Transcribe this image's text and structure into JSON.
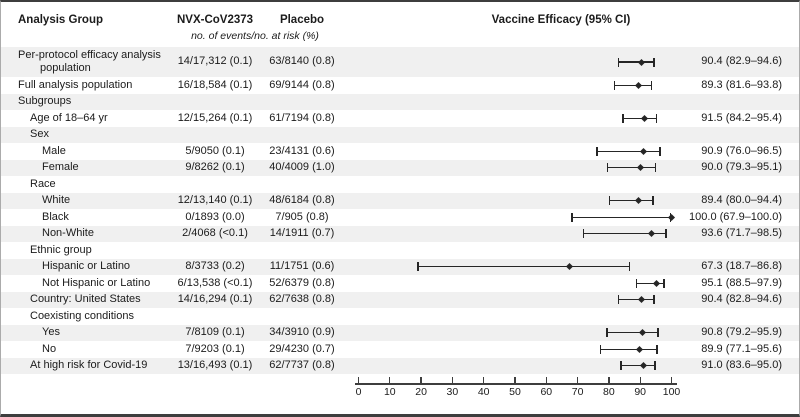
{
  "header": {
    "analysis_group": "Analysis Group",
    "nvx": "NVX-CoV2373",
    "placebo": "Placebo",
    "events_subtitle": "no. of events/no. at risk (%)",
    "vaccine_efficacy": "Vaccine Efficacy (95% CI)"
  },
  "colors": {
    "row_shade": "#f0f0f0",
    "marker": "#262626",
    "border_dark": "#3e3e3e",
    "border_light": "#ababab",
    "text": "#1b1b1b"
  },
  "rows": [
    {
      "label": "Per-protocol efficacy analysis population",
      "indent": 0,
      "nvx": "14/17,312 (0.1)",
      "placebo": "63/8140 (0.8)",
      "ve": "90.4 (82.9–94.6)",
      "est": 90.4,
      "lo": 82.9,
      "hi": 94.6
    },
    {
      "label": "Full analysis population",
      "indent": 0,
      "nvx": "16/18,584 (0.1)",
      "placebo": "69/9144 (0.8)",
      "ve": "89.3 (81.6–93.8)",
      "est": 89.3,
      "lo": 81.6,
      "hi": 93.8
    },
    {
      "label": "Subgroups",
      "indent": 0
    },
    {
      "label": "Age of 18–64 yr",
      "indent": 1,
      "nvx": "12/15,264 (0.1)",
      "placebo": "61/7194 (0.8)",
      "ve": "91.5 (84.2–95.4)",
      "est": 91.5,
      "lo": 84.2,
      "hi": 95.4
    },
    {
      "label": "Sex",
      "indent": 1
    },
    {
      "label": "Male",
      "indent": 2,
      "nvx": "5/9050 (0.1)",
      "placebo": "23/4131 (0.6)",
      "ve": "90.9 (76.0–96.5)",
      "est": 90.9,
      "lo": 76.0,
      "hi": 96.5
    },
    {
      "label": "Female",
      "indent": 2,
      "nvx": "9/8262 (0.1)",
      "placebo": "40/4009 (1.0)",
      "ve": "90.0 (79.3–95.1)",
      "est": 90.0,
      "lo": 79.3,
      "hi": 95.1
    },
    {
      "label": "Race",
      "indent": 1
    },
    {
      "label": "White",
      "indent": 2,
      "nvx": "12/13,140 (0.1)",
      "placebo": "48/6184 (0.8)",
      "ve": "89.4 (80.0–94.4)",
      "est": 89.4,
      "lo": 80.0,
      "hi": 94.4
    },
    {
      "label": "Black",
      "indent": 2,
      "nvx": "0/1893 (0.0)",
      "placebo": "7/905 (0.8)",
      "ve": "100.0 (67.9–100.0)",
      "est": 100.0,
      "lo": 67.9,
      "hi": 100.0
    },
    {
      "label": "Non-White",
      "indent": 2,
      "nvx": "2/4068 (<0.1)",
      "placebo": "14/1911 (0.7)",
      "ve": "93.6 (71.7–98.5)",
      "est": 93.6,
      "lo": 71.7,
      "hi": 98.5
    },
    {
      "label": "Ethnic group",
      "indent": 1
    },
    {
      "label": "Hispanic or Latino",
      "indent": 2,
      "nvx": "8/3733 (0.2)",
      "placebo": "11/1751 (0.6)",
      "ve": "67.3 (18.7–86.8)",
      "est": 67.3,
      "lo": 18.7,
      "hi": 86.8
    },
    {
      "label": "Not Hispanic or Latino",
      "indent": 2,
      "nvx": "6/13,538 (<0.1)",
      "placebo": "52/6379 (0.8)",
      "ve": "95.1 (88.5–97.9)",
      "est": 95.1,
      "lo": 88.5,
      "hi": 97.9
    },
    {
      "label": "Country: United States",
      "indent": 1,
      "nvx": "14/16,294 (0.1)",
      "placebo": "62/7638 (0.8)",
      "ve": "90.4 (82.8–94.6)",
      "est": 90.4,
      "lo": 82.8,
      "hi": 94.6
    },
    {
      "label": "Coexisting conditions",
      "indent": 1
    },
    {
      "label": "Yes",
      "indent": 2,
      "nvx": "7/8109 (0.1)",
      "placebo": "34/3910 (0.9)",
      "ve": "90.8 (79.2–95.9)",
      "est": 90.8,
      "lo": 79.2,
      "hi": 95.9
    },
    {
      "label": "No",
      "indent": 2,
      "nvx": "7/9203 (0.1)",
      "placebo": "29/4230 (0.7)",
      "ve": "89.9 (77.1–95.6)",
      "est": 89.9,
      "lo": 77.1,
      "hi": 95.6
    },
    {
      "label": "At high risk for Covid-19",
      "indent": 1,
      "nvx": "13/16,493 (0.1)",
      "placebo": "62/7737 (0.8)",
      "ve": "91.0 (83.6–95.0)",
      "est": 91.0,
      "lo": 83.6,
      "hi": 95.0
    }
  ],
  "chart_data": {
    "type": "scatter",
    "title": "Vaccine Efficacy (95% CI)",
    "xlabel": "",
    "xlim": [
      0,
      100
    ],
    "xticks": [
      0,
      10,
      20,
      30,
      40,
      50,
      60,
      70,
      80,
      90,
      100
    ],
    "grid": false,
    "legend": "none",
    "points": [
      {
        "label": "Per-protocol efficacy analysis population",
        "estimate": 90.4,
        "ci_low": 82.9,
        "ci_high": 94.6
      },
      {
        "label": "Full analysis population",
        "estimate": 89.3,
        "ci_low": 81.6,
        "ci_high": 93.8
      },
      {
        "label": "Age of 18–64 yr",
        "estimate": 91.5,
        "ci_low": 84.2,
        "ci_high": 95.4
      },
      {
        "label": "Male",
        "estimate": 90.9,
        "ci_low": 76.0,
        "ci_high": 96.5
      },
      {
        "label": "Female",
        "estimate": 90.0,
        "ci_low": 79.3,
        "ci_high": 95.1
      },
      {
        "label": "White",
        "estimate": 89.4,
        "ci_low": 80.0,
        "ci_high": 94.4
      },
      {
        "label": "Black",
        "estimate": 100.0,
        "ci_low": 67.9,
        "ci_high": 100.0
      },
      {
        "label": "Non-White",
        "estimate": 93.6,
        "ci_low": 71.7,
        "ci_high": 98.5
      },
      {
        "label": "Hispanic or Latino",
        "estimate": 67.3,
        "ci_low": 18.7,
        "ci_high": 86.8
      },
      {
        "label": "Not Hispanic or Latino",
        "estimate": 95.1,
        "ci_low": 88.5,
        "ci_high": 97.9
      },
      {
        "label": "Country: United States",
        "estimate": 90.4,
        "ci_low": 82.8,
        "ci_high": 94.6
      },
      {
        "label": "Coexisting conditions: Yes",
        "estimate": 90.8,
        "ci_low": 79.2,
        "ci_high": 95.9
      },
      {
        "label": "Coexisting conditions: No",
        "estimate": 89.9,
        "ci_low": 77.1,
        "ci_high": 95.6
      },
      {
        "label": "At high risk for Covid-19",
        "estimate": 91.0,
        "ci_low": 83.6,
        "ci_high": 95.0
      }
    ]
  }
}
